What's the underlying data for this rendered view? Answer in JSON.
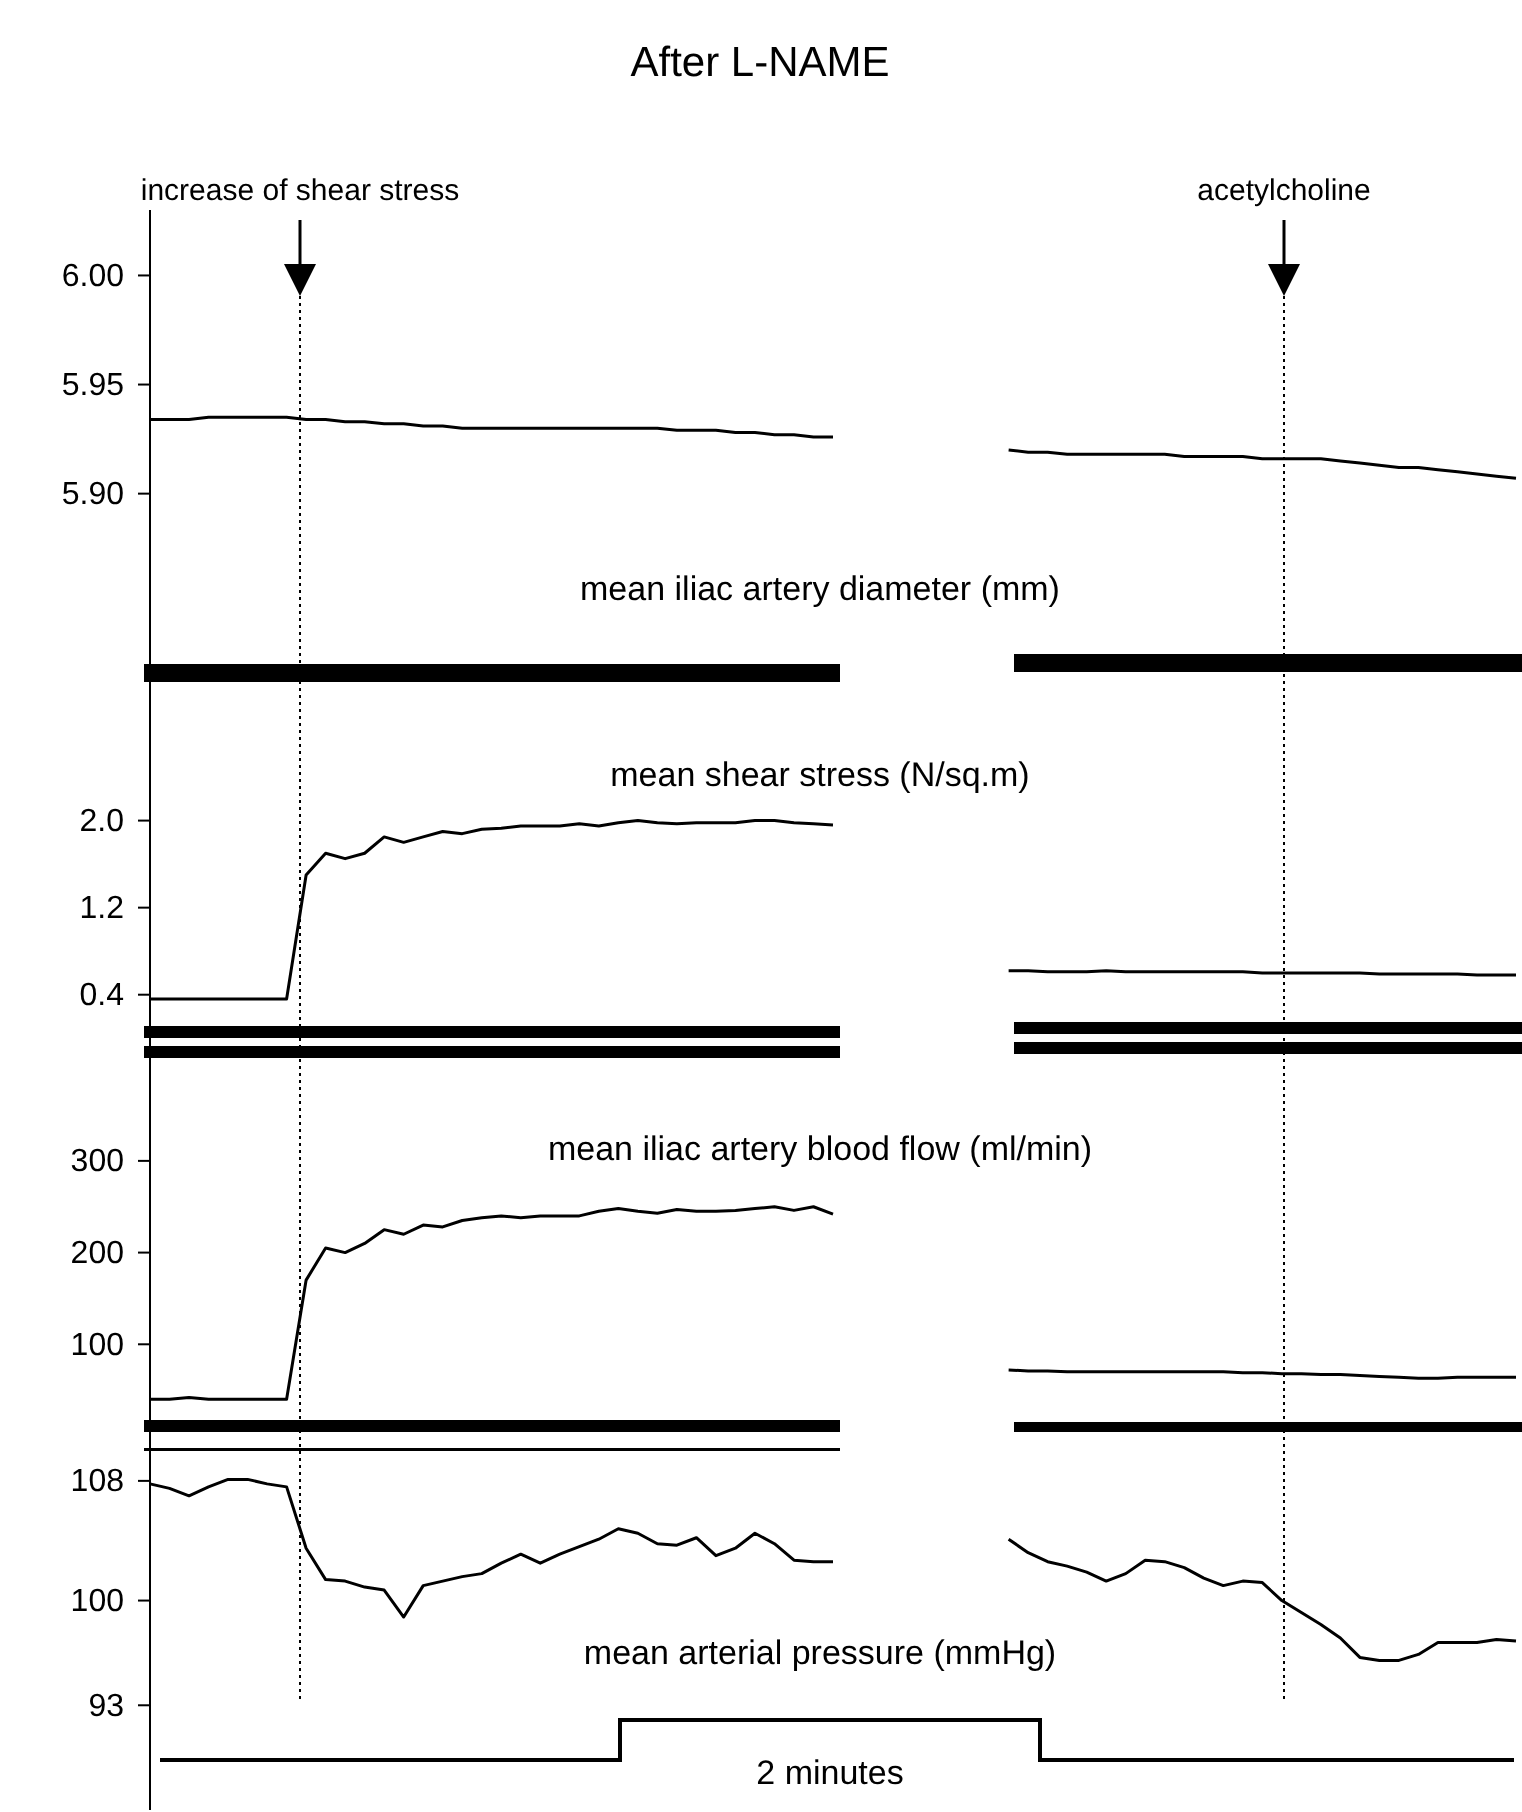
{
  "chart_data": [
    {
      "type": "line",
      "title": "mean iliac artery diameter (mm)",
      "annotations": [
        "After L-NAME",
        "increase of shear stress",
        "acetylcholine"
      ],
      "tick_labels": "y",
      "categories": [
        null,
        null,
        null,
        null,
        null,
        null,
        null,
        null,
        null,
        null,
        null,
        null,
        null,
        null,
        null,
        null,
        null,
        null,
        null,
        null,
        null,
        null,
        null,
        null,
        null,
        null,
        null,
        null,
        null,
        null,
        null,
        null,
        null,
        null,
        null,
        null,
        null,
        null,
        null,
        null,
        null,
        null,
        null,
        null,
        null,
        null,
        null,
        null,
        null,
        null,
        null,
        null,
        null,
        null,
        null,
        null,
        null,
        null,
        null,
        null,
        null,
        null,
        null,
        null,
        null,
        null,
        null,
        null,
        null,
        null,
        null
      ],
      "ylim": [
        5.81,
        6.03
      ],
      "yticks": [
        {
          "value": 5.9,
          "label": "5.90"
        },
        {
          "value": 5.95,
          "label": "5.95"
        },
        {
          "value": 6.0,
          "label": "6.00"
        }
      ],
      "series": [
        {
          "color": "#000000",
          "values": [
            5.934,
            5.934,
            5.934,
            5.935,
            5.935,
            5.935,
            5.935,
            5.935,
            5.934,
            5.934,
            5.933,
            5.933,
            5.932,
            5.932,
            5.931,
            5.931,
            5.93,
            5.93,
            5.93,
            5.93,
            5.93,
            5.93,
            5.93,
            5.93,
            5.93,
            5.93,
            5.93,
            5.929,
            5.929,
            5.929,
            5.928,
            5.928,
            5.927,
            5.927,
            5.926,
            5.926,
            null,
            null,
            null,
            null,
            null,
            null,
            null,
            null,
            null,
            null,
            null,
            null,
            null,
            null,
            null,
            null,
            null,
            null,
            null,
            null,
            null,
            null,
            null,
            null,
            null,
            null,
            null,
            null,
            null,
            null,
            null,
            null,
            null,
            null,
            null
          ]
        },
        {
          "color": "#000000",
          "values": [
            null,
            null,
            null,
            null,
            null,
            null,
            null,
            null,
            null,
            null,
            null,
            null,
            null,
            null,
            null,
            null,
            null,
            null,
            null,
            null,
            null,
            null,
            null,
            null,
            null,
            null,
            null,
            null,
            null,
            null,
            null,
            null,
            null,
            null,
            null,
            null,
            null,
            null,
            null,
            null,
            null,
            null,
            null,
            null,
            5.92,
            5.919,
            5.919,
            5.918,
            5.918,
            5.918,
            5.918,
            5.918,
            5.918,
            5.917,
            5.917,
            5.917,
            5.917,
            5.916,
            5.916,
            5.916,
            5.916,
            5.915,
            5.914,
            5.913,
            5.912,
            5.912,
            5.911,
            5.91,
            5.909,
            5.908,
            5.907
          ]
        }
      ]
    },
    {
      "type": "line",
      "title": "mean shear stress (N/sq.m)",
      "tick_labels": "y",
      "categories": [
        null,
        null,
        null,
        null,
        null,
        null,
        null,
        null,
        null,
        null,
        null,
        null,
        null,
        null,
        null,
        null,
        null,
        null,
        null,
        null,
        null,
        null,
        null,
        null,
        null,
        null,
        null,
        null,
        null,
        null,
        null,
        null,
        null,
        null,
        null,
        null,
        null,
        null,
        null,
        null,
        null,
        null,
        null,
        null,
        null,
        null,
        null,
        null,
        null,
        null,
        null,
        null,
        null,
        null,
        null,
        null,
        null,
        null,
        null,
        null,
        null,
        null,
        null,
        null,
        null,
        null,
        null,
        null,
        null,
        null,
        null
      ],
      "ylim": [
        -0.2,
        3.2
      ],
      "yticks": [
        0.4,
        1.2,
        {
          "value": 2.0,
          "label": "2.0"
        }
      ],
      "series": [
        {
          "color": "#000000",
          "values": [
            0.36,
            0.36,
            0.36,
            0.36,
            0.36,
            0.36,
            0.36,
            0.36,
            1.5,
            1.7,
            1.65,
            1.7,
            1.85,
            1.8,
            1.85,
            1.9,
            1.88,
            1.92,
            1.93,
            1.95,
            1.95,
            1.95,
            1.97,
            1.95,
            1.98,
            2.0,
            1.98,
            1.97,
            1.98,
            1.98,
            1.98,
            2.0,
            2.0,
            1.98,
            1.97,
            1.96,
            null,
            null,
            null,
            null,
            null,
            null,
            null,
            null,
            null,
            null,
            null,
            null,
            null,
            null,
            null,
            null,
            null,
            null,
            null,
            null,
            null,
            null,
            null,
            null,
            null,
            null,
            null,
            null,
            null,
            null,
            null,
            null,
            null,
            null,
            null
          ]
        },
        {
          "color": "#000000",
          "values": [
            null,
            null,
            null,
            null,
            null,
            null,
            null,
            null,
            null,
            null,
            null,
            null,
            null,
            null,
            null,
            null,
            null,
            null,
            null,
            null,
            null,
            null,
            null,
            null,
            null,
            null,
            null,
            null,
            null,
            null,
            null,
            null,
            null,
            null,
            null,
            null,
            null,
            null,
            null,
            null,
            null,
            null,
            null,
            null,
            0.62,
            0.62,
            0.61,
            0.61,
            0.61,
            0.62,
            0.61,
            0.61,
            0.61,
            0.61,
            0.61,
            0.61,
            0.61,
            0.6,
            0.6,
            0.6,
            0.6,
            0.6,
            0.6,
            0.59,
            0.59,
            0.59,
            0.59,
            0.59,
            0.58,
            0.58,
            0.58
          ]
        }
      ]
    },
    {
      "type": "line",
      "title": "mean iliac artery blood flow (ml/min)",
      "tick_labels": "y",
      "categories": [
        null,
        null,
        null,
        null,
        null,
        null,
        null,
        null,
        null,
        null,
        null,
        null,
        null,
        null,
        null,
        null,
        null,
        null,
        null,
        null,
        null,
        null,
        null,
        null,
        null,
        null,
        null,
        null,
        null,
        null,
        null,
        null,
        null,
        null,
        null,
        null,
        null,
        null,
        null,
        null,
        null,
        null,
        null,
        null,
        null,
        null,
        null,
        null,
        null,
        null,
        null,
        null,
        null,
        null,
        null,
        null,
        null,
        null,
        null,
        null,
        null,
        null,
        null,
        null,
        null,
        null,
        null,
        null,
        null,
        null,
        null
      ],
      "ylim": [
        0,
        410
      ],
      "yticks": [
        100,
        200,
        300
      ],
      "series": [
        {
          "color": "#000000",
          "values": [
            40,
            40,
            42,
            40,
            40,
            40,
            40,
            40,
            170,
            205,
            200,
            210,
            225,
            220,
            230,
            228,
            235,
            238,
            240,
            238,
            240,
            240,
            240,
            245,
            248,
            245,
            243,
            247,
            245,
            245,
            246,
            248,
            250,
            246,
            250,
            242,
            null,
            null,
            null,
            null,
            null,
            null,
            null,
            null,
            null,
            null,
            null,
            null,
            null,
            null,
            null,
            null,
            null,
            null,
            null,
            null,
            null,
            null,
            null,
            null,
            null,
            null,
            null,
            null,
            null,
            null,
            null,
            null,
            null,
            null,
            null
          ]
        },
        {
          "color": "#000000",
          "values": [
            null,
            null,
            null,
            null,
            null,
            null,
            null,
            null,
            null,
            null,
            null,
            null,
            null,
            null,
            null,
            null,
            null,
            null,
            null,
            null,
            null,
            null,
            null,
            null,
            null,
            null,
            null,
            null,
            null,
            null,
            null,
            null,
            null,
            null,
            null,
            null,
            null,
            null,
            null,
            null,
            null,
            null,
            null,
            null,
            72,
            71,
            71,
            70,
            70,
            70,
            70,
            70,
            70,
            70,
            70,
            70,
            69,
            69,
            68,
            68,
            67,
            67,
            66,
            65,
            64,
            63,
            63,
            64,
            64,
            64,
            64
          ]
        }
      ]
    },
    {
      "type": "line",
      "title": "mean arterial pressure (mmHg)",
      "annotations": [
        "2 minutes"
      ],
      "tick_labels": "y",
      "categories": [
        null,
        null,
        null,
        null,
        null,
        null,
        null,
        null,
        null,
        null,
        null,
        null,
        null,
        null,
        null,
        null,
        null,
        null,
        null,
        null,
        null,
        null,
        null,
        null,
        null,
        null,
        null,
        null,
        null,
        null,
        null,
        null,
        null,
        null,
        null,
        null,
        null,
        null,
        null,
        null,
        null,
        null,
        null,
        null,
        null,
        null,
        null,
        null,
        null,
        null,
        null,
        null,
        null,
        null,
        null,
        null,
        null,
        null,
        null,
        null,
        null,
        null,
        null,
        null,
        null,
        null,
        null,
        null,
        null,
        null,
        null
      ],
      "ylim": [
        86,
        111
      ],
      "yticks": [
        93,
        100,
        108
      ],
      "series": [
        {
          "color": "#000000",
          "values": [
            107.8,
            107.5,
            107.0,
            107.6,
            108.1,
            108.1,
            107.8,
            107.6,
            103.5,
            101.4,
            101.3,
            100.9,
            100.7,
            98.9,
            101.0,
            101.3,
            101.6,
            101.8,
            102.5,
            103.1,
            102.5,
            103.1,
            103.6,
            104.1,
            104.8,
            104.5,
            103.8,
            103.7,
            104.2,
            103.0,
            103.5,
            104.5,
            103.8,
            102.7,
            102.6,
            102.6,
            null,
            null,
            null,
            null,
            null,
            null,
            null,
            null,
            null,
            null,
            null,
            null,
            null,
            null,
            null,
            null,
            null,
            null,
            null,
            null,
            null,
            null,
            null,
            null,
            null,
            null,
            null,
            null,
            null,
            null,
            null,
            null,
            null,
            null,
            null
          ]
        },
        {
          "color": "#000000",
          "values": [
            null,
            null,
            null,
            null,
            null,
            null,
            null,
            null,
            null,
            null,
            null,
            null,
            null,
            null,
            null,
            null,
            null,
            null,
            null,
            null,
            null,
            null,
            null,
            null,
            null,
            null,
            null,
            null,
            null,
            null,
            null,
            null,
            null,
            null,
            null,
            null,
            null,
            null,
            null,
            null,
            null,
            null,
            null,
            null,
            104.1,
            103.2,
            102.6,
            102.3,
            101.9,
            101.3,
            101.8,
            102.7,
            102.6,
            102.2,
            101.5,
            101.0,
            101.3,
            101.2,
            100.0,
            99.2,
            98.4,
            97.5,
            96.2,
            96.0,
            96.0,
            96.4,
            97.2,
            97.2,
            97.2,
            97.4,
            97.3
          ]
        }
      ]
    }
  ]
}
